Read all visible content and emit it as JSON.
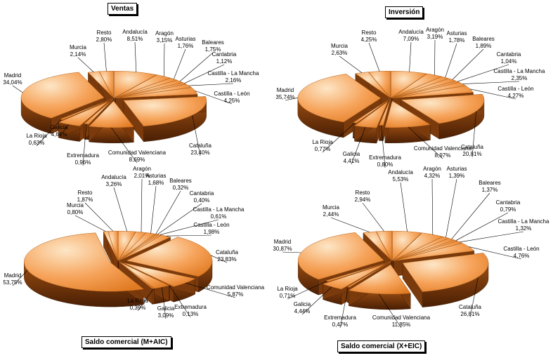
{
  "chart_data": [
    {
      "type": "pie",
      "title": "Ventas",
      "slices": [
        {
          "label": "Andalucía",
          "value": 8.51,
          "value_label": "8,51%"
        },
        {
          "label": "Aragón",
          "value": 3.15,
          "value_label": "3,15%"
        },
        {
          "label": "Asturias",
          "value": 1.76,
          "value_label": "1,76%"
        },
        {
          "label": "Baleares",
          "value": 1.75,
          "value_label": "1,75%"
        },
        {
          "label": "Cantabria",
          "value": 1.12,
          "value_label": "1,12%"
        },
        {
          "label": "Castilla - La Mancha",
          "value": 2.16,
          "value_label": "2,16%"
        },
        {
          "label": "Castilla - León",
          "value": 4.25,
          "value_label": "4,25%"
        },
        {
          "label": "Cataluña",
          "value": 23.4,
          "value_label": "23,40%"
        },
        {
          "label": "Comunidad Valenciana",
          "value": 8.69,
          "value_label": "8,69%"
        },
        {
          "label": "Extremadura",
          "value": 0.96,
          "value_label": "0,96%"
        },
        {
          "label": "Galicia",
          "value": 4.64,
          "value_label": "4,64%"
        },
        {
          "label": "La Rioja",
          "value": 0.63,
          "value_label": "0,63%"
        },
        {
          "label": "Madrid",
          "value": 34.04,
          "value_label": "34,04%"
        },
        {
          "label": "Murcia",
          "value": 2.14,
          "value_label": "2,14%"
        },
        {
          "label": "Resto",
          "value": 2.8,
          "value_label": "2,80%"
        }
      ]
    },
    {
      "type": "pie",
      "title": "Inversión",
      "slices": [
        {
          "label": "Andalucía",
          "value": 7.09,
          "value_label": "7,09%"
        },
        {
          "label": "Aragón",
          "value": 3.19,
          "value_label": "3,19%"
        },
        {
          "label": "Asturias",
          "value": 1.78,
          "value_label": "1,78%"
        },
        {
          "label": "Baleares",
          "value": 1.89,
          "value_label": "1,89%"
        },
        {
          "label": "Cantabria",
          "value": 1.04,
          "value_label": "1,04%"
        },
        {
          "label": "Castilla - La Mancha",
          "value": 2.35,
          "value_label": "2,35%"
        },
        {
          "label": "Castilla - León",
          "value": 4.27,
          "value_label": "4,27%"
        },
        {
          "label": "Cataluña",
          "value": 20.81,
          "value_label": "20,81%"
        },
        {
          "label": "Comunidad Valenciana",
          "value": 8.97,
          "value_label": "8,97%"
        },
        {
          "label": "Extremadura",
          "value": 0.8,
          "value_label": "0,80%"
        },
        {
          "label": "Galicia",
          "value": 4.41,
          "value_label": "4,41%"
        },
        {
          "label": "La Rioja",
          "value": 0.77,
          "value_label": "0,77%"
        },
        {
          "label": "Madrid",
          "value": 35.74,
          "value_label": "35,74%"
        },
        {
          "label": "Murcia",
          "value": 2.63,
          "value_label": "2,63%"
        },
        {
          "label": "Resto",
          "value": 4.25,
          "value_label": "4,25%"
        }
      ]
    },
    {
      "type": "pie",
      "title": "Saldo comercial (M+AIC)",
      "slices": [
        {
          "label": "Andalucía",
          "value": 3.26,
          "value_label": "3,26%"
        },
        {
          "label": "Aragón",
          "value": 2.01,
          "value_label": "2,01%"
        },
        {
          "label": "Asturias",
          "value": 1.68,
          "value_label": "1,68%"
        },
        {
          "label": "Baleares",
          "value": 0.32,
          "value_label": "0,32%"
        },
        {
          "label": "Cantabria",
          "value": 0.4,
          "value_label": "0,40%"
        },
        {
          "label": "Castilla - La Mancha",
          "value": 0.61,
          "value_label": "0,61%"
        },
        {
          "label": "Castilla - León",
          "value": 1.98,
          "value_label": "1,98%"
        },
        {
          "label": "Cataluña",
          "value": 23.83,
          "value_label": "23,83%"
        },
        {
          "label": "Comunidad Valenciana",
          "value": 5.87,
          "value_label": "5,87%"
        },
        {
          "label": "Extremadura",
          "value": 0.13,
          "value_label": "0,13%"
        },
        {
          "label": "Galicia",
          "value": 3.09,
          "value_label": "3,09%"
        },
        {
          "label": "La Rioja",
          "value": 0.39,
          "value_label": "0,39%"
        },
        {
          "label": "Madrid",
          "value": 53.75,
          "value_label": "53,75%"
        },
        {
          "label": "Murcia",
          "value": 0.8,
          "value_label": "0,80%"
        },
        {
          "label": "Resto",
          "value": 1.87,
          "value_label": "1,87%"
        }
      ]
    },
    {
      "type": "pie",
      "title": "Saldo comercial (X+EIC)",
      "slices": [
        {
          "label": "Andalucía",
          "value": 5.53,
          "value_label": "5,53%"
        },
        {
          "label": "Aragón",
          "value": 4.32,
          "value_label": "4,32%"
        },
        {
          "label": "Asturias",
          "value": 1.39,
          "value_label": "1,39%"
        },
        {
          "label": "Baleares",
          "value": 1.37,
          "value_label": "1,37%"
        },
        {
          "label": "Cantabria",
          "value": 0.79,
          "value_label": "0,79%"
        },
        {
          "label": "Castilla - La Mancha",
          "value": 1.32,
          "value_label": "1,32%"
        },
        {
          "label": "Castilla - León",
          "value": 4.76,
          "value_label": "4,76%"
        },
        {
          "label": "Cataluña",
          "value": 26.81,
          "value_label": "26,81%"
        },
        {
          "label": "Comunidad Valenciana",
          "value": 11.85,
          "value_label": "11,85%"
        },
        {
          "label": "Extremadura",
          "value": 0.47,
          "value_label": "0,47%"
        },
        {
          "label": "Galicia",
          "value": 4.44,
          "value_label": "4,44%"
        },
        {
          "label": "La Rioja",
          "value": 0.71,
          "value_label": "0,71%"
        },
        {
          "label": "Madrid",
          "value": 30.87,
          "value_label": "30,87%"
        },
        {
          "label": "Murcia",
          "value": 2.44,
          "value_label": "2,44%"
        },
        {
          "label": "Resto",
          "value": 2.94,
          "value_label": "2,94%"
        }
      ]
    }
  ],
  "colors": {
    "slice_light": "#fde6c6",
    "slice_mid": "#f6a35a",
    "slice_dark": "#e07a22",
    "side_light": "#9a4d12",
    "side_dark": "#4a1f04",
    "text": "#000000"
  }
}
